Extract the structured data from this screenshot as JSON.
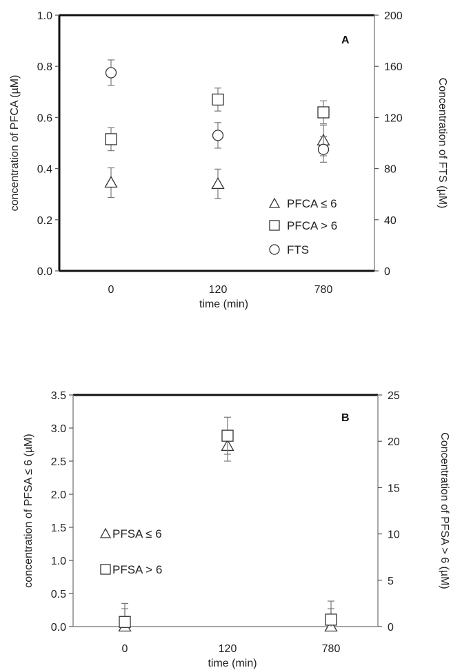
{
  "chart_data": [
    {
      "type": "scatter",
      "panel_label": "A",
      "xlabel": "time (min)",
      "ylabel": "concentration of PFCA (µM)",
      "y2label": "Concentration of FTS (µM)",
      "categories": [
        "0",
        "120",
        "780"
      ],
      "ylim": [
        0,
        1.0
      ],
      "y2lim": [
        0,
        200
      ],
      "yticks": [
        "0.0",
        "0.2",
        "0.4",
        "0.6",
        "0.8",
        "1.0"
      ],
      "y2ticks": [
        "0",
        "40",
        "80",
        "120",
        "160",
        "200"
      ],
      "grid": false,
      "legend_position": "bottom-right",
      "series": [
        {
          "name": "PFCA ≤ 6",
          "marker": "triangle",
          "axis": "left",
          "values": [
            0.345,
            0.34,
            0.51
          ],
          "errors": [
            0.058,
            0.058,
            0.06
          ]
        },
        {
          "name": "PFCA > 6",
          "marker": "square",
          "axis": "left",
          "values": [
            0.515,
            0.67,
            0.62
          ],
          "errors": [
            0.045,
            0.045,
            0.045
          ]
        },
        {
          "name": "FTS",
          "marker": "circle",
          "axis": "right",
          "values": [
            155,
            106,
            95
          ],
          "errors": [
            10,
            10,
            10
          ]
        }
      ]
    },
    {
      "type": "scatter",
      "panel_label": "B",
      "xlabel": "time (min)",
      "ylabel": "concentration of PFSA ≤ 6 (µM)",
      "y2label": "Concentration of PFSA > 6 (µM)",
      "categories": [
        "0",
        "120",
        "780"
      ],
      "ylim": [
        0,
        3.5
      ],
      "y2lim": [
        0,
        25
      ],
      "yticks": [
        "0.0",
        "0.5",
        "1.0",
        "1.5",
        "2.0",
        "2.5",
        "3.0",
        "3.5"
      ],
      "y2ticks": [
        "0",
        "5",
        "10",
        "15",
        "20",
        "25"
      ],
      "grid": false,
      "legend_position": "left",
      "series": [
        {
          "name": "PFSA ≤ 6",
          "marker": "triangle",
          "axis": "left",
          "values": [
            0.0,
            2.73,
            0.0
          ],
          "errors": [
            0.27,
            0.23,
            0.27
          ]
        },
        {
          "name": "PFSA > 6",
          "marker": "square",
          "axis": "right",
          "values": [
            0.5,
            20.6,
            0.75
          ],
          "errors": [
            2.0,
            2.0,
            2.0
          ]
        }
      ]
    }
  ]
}
